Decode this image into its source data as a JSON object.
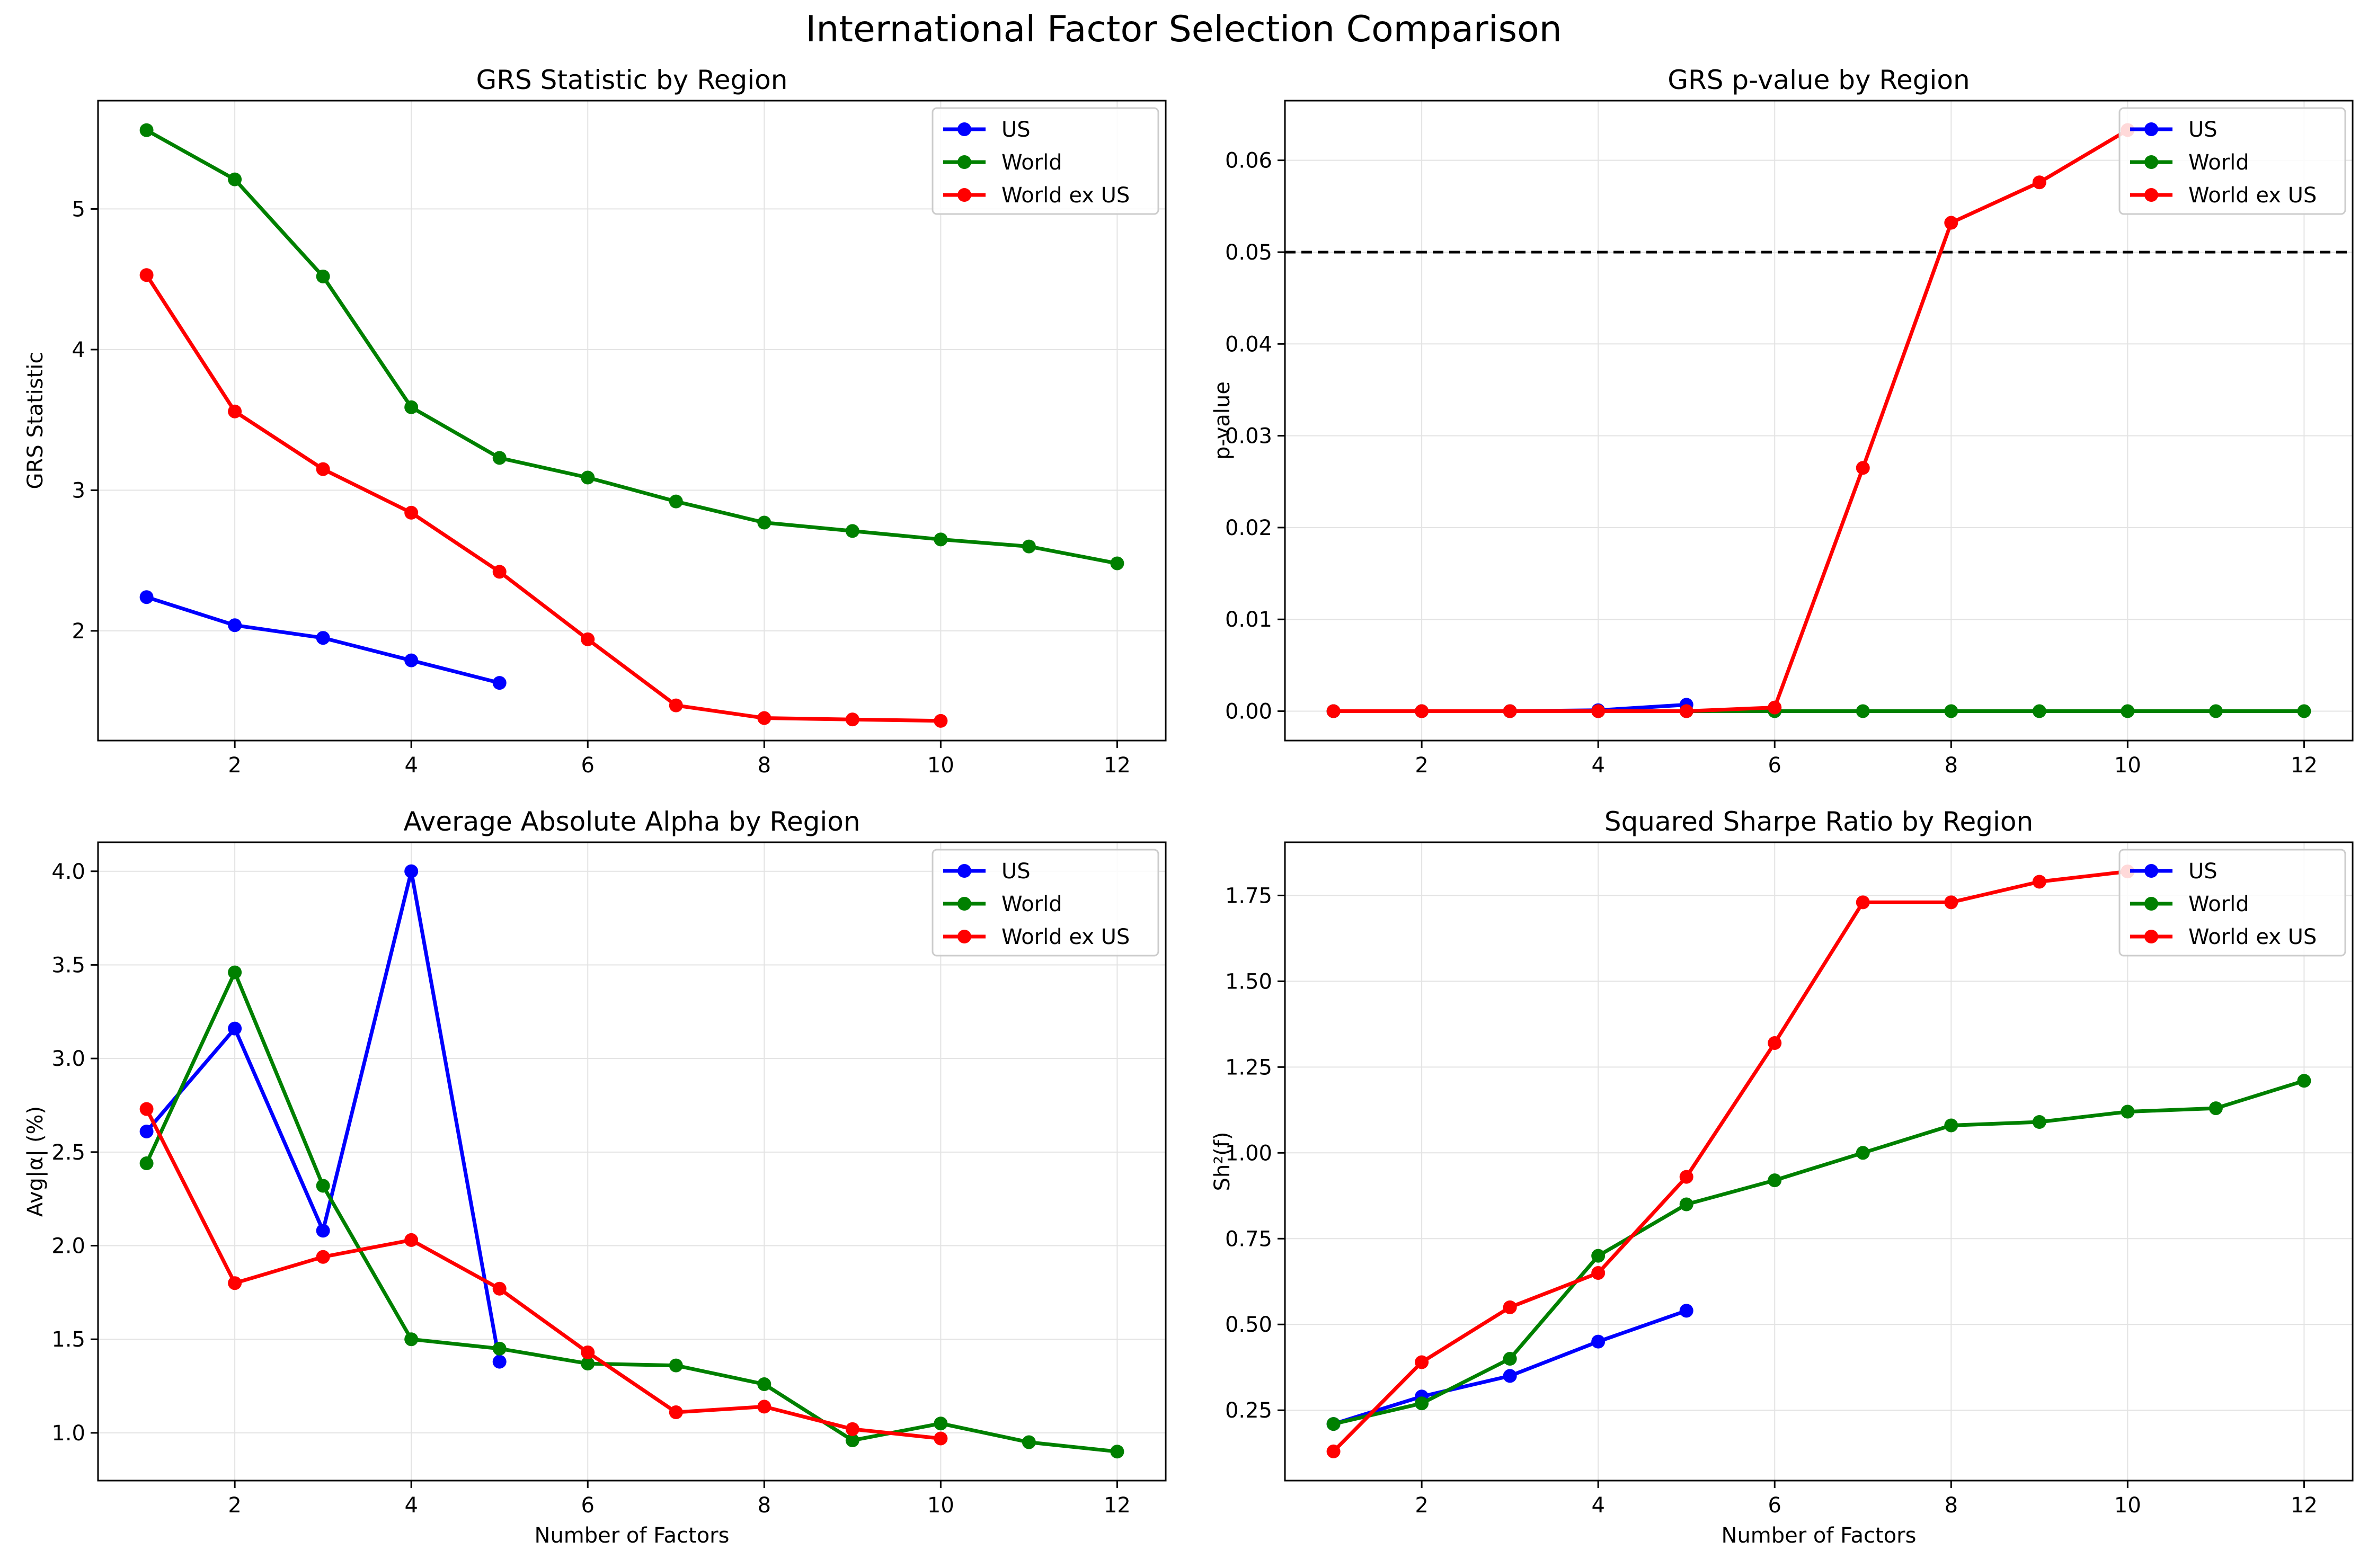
{
  "figure_title": "International Factor Selection Comparison",
  "colors": {
    "US": "#0000ff",
    "World": "#008000",
    "World ex US": "#ff0000",
    "threshold": "#000000"
  },
  "chart_data": [
    {
      "type": "line",
      "title": "GRS Statistic by Region",
      "xlabel": "",
      "ylabel": "GRS Statistic",
      "xlim": [
        0.45,
        12.55
      ],
      "ylim": [
        1.22,
        5.77
      ],
      "xticks": [
        2,
        4,
        6,
        8,
        10,
        12
      ],
      "yticks": [
        2,
        3,
        4,
        5
      ],
      "ytick_labels": [
        "2",
        "3",
        "4",
        "5"
      ],
      "grid": true,
      "legend": "upper right",
      "series": [
        {
          "name": "US",
          "x": [
            1,
            2,
            3,
            4,
            5
          ],
          "y": [
            2.24,
            2.04,
            1.95,
            1.79,
            1.63
          ]
        },
        {
          "name": "World",
          "x": [
            1,
            2,
            3,
            4,
            5,
            6,
            7,
            8,
            9,
            10,
            11,
            12
          ],
          "y": [
            5.56,
            5.21,
            4.52,
            3.59,
            3.23,
            3.09,
            2.92,
            2.77,
            2.71,
            2.65,
            2.6,
            2.48
          ]
        },
        {
          "name": "World ex US",
          "x": [
            1,
            2,
            3,
            4,
            5,
            6,
            7,
            8,
            9,
            10
          ],
          "y": [
            4.53,
            3.56,
            3.15,
            2.84,
            2.42,
            1.94,
            1.47,
            1.38,
            1.37,
            1.36
          ]
        }
      ]
    },
    {
      "type": "line",
      "title": "GRS p-value by Region",
      "xlabel": "",
      "ylabel": "p-value",
      "xlim": [
        0.45,
        12.55
      ],
      "ylim": [
        -0.0032,
        0.0665
      ],
      "xticks": [
        2,
        4,
        6,
        8,
        10,
        12
      ],
      "yticks": [
        0,
        0.01,
        0.02,
        0.03,
        0.04,
        0.05,
        0.06
      ],
      "ytick_labels": [
        "0.00",
        "0.01",
        "0.02",
        "0.03",
        "0.04",
        "0.05",
        "0.06"
      ],
      "grid": true,
      "legend": "upper right",
      "hline": 0.05,
      "series": [
        {
          "name": "US",
          "x": [
            1,
            2,
            3,
            4,
            5
          ],
          "y": [
            0.0,
            0.0,
            0.0,
            0.0001,
            0.0007
          ]
        },
        {
          "name": "World",
          "x": [
            1,
            2,
            3,
            4,
            5,
            6,
            7,
            8,
            9,
            10,
            11,
            12
          ],
          "y": [
            0,
            0,
            0,
            0,
            0,
            0,
            0,
            0,
            0,
            0,
            0,
            0
          ]
        },
        {
          "name": "World ex US",
          "x": [
            1,
            2,
            3,
            4,
            5,
            6,
            7,
            8,
            9,
            10
          ],
          "y": [
            0.0,
            0.0,
            0.0,
            0.0,
            0.0,
            0.0004,
            0.0265,
            0.0532,
            0.0576,
            0.0633
          ]
        }
      ]
    },
    {
      "type": "line",
      "title": "Average Absolute Alpha by Region",
      "xlabel": "Number of Factors",
      "ylabel": "Avg|α| (%)",
      "xlim": [
        0.45,
        12.55
      ],
      "ylim": [
        0.745,
        4.155
      ],
      "xticks": [
        2,
        4,
        6,
        8,
        10,
        12
      ],
      "yticks": [
        1.0,
        1.5,
        2.0,
        2.5,
        3.0,
        3.5,
        4.0
      ],
      "ytick_labels": [
        "1.0",
        "1.5",
        "2.0",
        "2.5",
        "3.0",
        "3.5",
        "4.0"
      ],
      "grid": true,
      "legend": "upper right",
      "series": [
        {
          "name": "US",
          "x": [
            1,
            2,
            3,
            4,
            5
          ],
          "y": [
            2.61,
            3.16,
            2.08,
            4.0,
            1.38
          ]
        },
        {
          "name": "World",
          "x": [
            1,
            2,
            3,
            4,
            5,
            6,
            7,
            8,
            9,
            10,
            11,
            12
          ],
          "y": [
            2.44,
            3.46,
            2.32,
            1.5,
            1.45,
            1.37,
            1.36,
            1.26,
            0.96,
            1.05,
            0.95,
            0.9
          ]
        },
        {
          "name": "World ex US",
          "x": [
            1,
            2,
            3,
            4,
            5,
            6,
            7,
            8,
            9,
            10
          ],
          "y": [
            2.73,
            1.8,
            1.94,
            2.03,
            1.77,
            1.43,
            1.11,
            1.14,
            1.02,
            0.97
          ]
        }
      ]
    },
    {
      "type": "line",
      "title": "Squared Sharpe Ratio by Region",
      "xlabel": "Number of Factors",
      "ylabel": "Sh²(f)",
      "xlim": [
        0.45,
        12.55
      ],
      "ylim": [
        0.045,
        1.905
      ],
      "xticks": [
        2,
        4,
        6,
        8,
        10,
        12
      ],
      "yticks": [
        0.25,
        0.5,
        0.75,
        1.0,
        1.25,
        1.5,
        1.75
      ],
      "ytick_labels": [
        "0.25",
        "0.50",
        "0.75",
        "1.00",
        "1.25",
        "1.50",
        "1.75"
      ],
      "grid": true,
      "legend": "upper right",
      "series": [
        {
          "name": "US",
          "x": [
            1,
            2,
            3,
            4,
            5
          ],
          "y": [
            0.21,
            0.29,
            0.35,
            0.45,
            0.54
          ]
        },
        {
          "name": "World",
          "x": [
            1,
            2,
            3,
            4,
            5,
            6,
            7,
            8,
            9,
            10,
            11,
            12
          ],
          "y": [
            0.21,
            0.27,
            0.4,
            0.7,
            0.85,
            0.92,
            1.0,
            1.08,
            1.09,
            1.12,
            1.13,
            1.21
          ]
        },
        {
          "name": "World ex US",
          "x": [
            1,
            2,
            3,
            4,
            5,
            6,
            7,
            8,
            9,
            10
          ],
          "y": [
            0.13,
            0.39,
            0.55,
            0.65,
            0.93,
            1.32,
            1.73,
            1.73,
            1.79,
            1.82
          ]
        }
      ]
    }
  ]
}
